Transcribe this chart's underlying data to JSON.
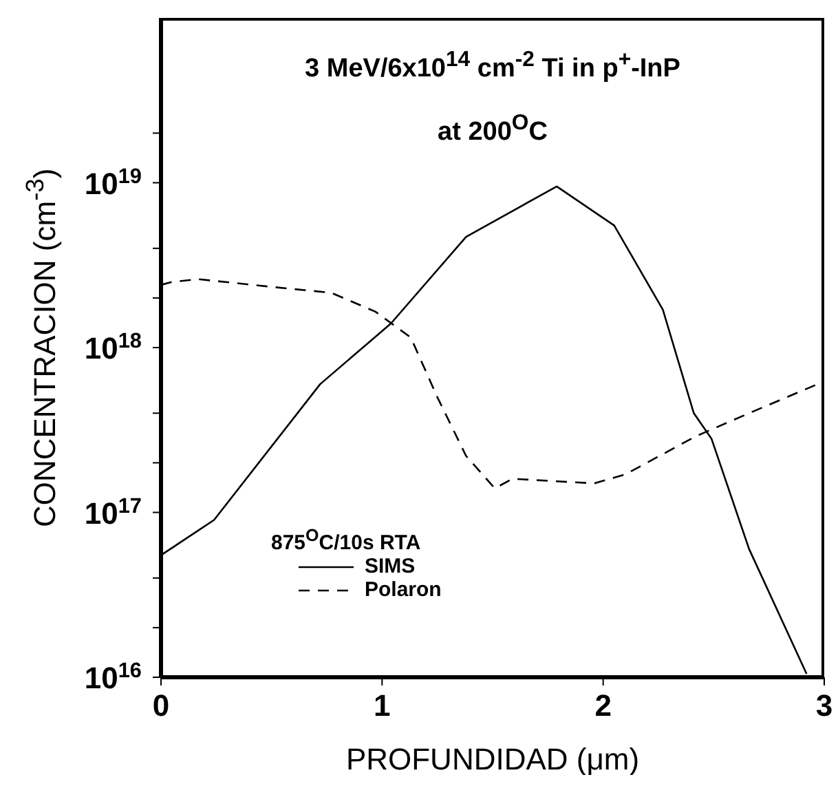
{
  "chart_data": {
    "type": "line",
    "title": "3 MeV/6x10$^{14}$ cm$^{-2}$ Ti in p$^{+}$-InP\nat 200$^{O}$C",
    "xlabel": "PROFUNDIDAD (μm)",
    "ylabel": "CONCENTRACION (cm$^{-3}$)",
    "legend_title": "875$^{O}$C/10s RTA",
    "legend": "bottom left",
    "log": "y",
    "marker": "none",
    "xlim": [
      0,
      3
    ],
    "xticks": [
      0,
      1,
      2,
      3
    ],
    "ylim": [
      1e+16,
      1e+20
    ],
    "yticks": [
      {
        "value": 1e+16,
        "label": "10$^{16}$"
      },
      {
        "value": 2e+16,
        "label": null
      },
      {
        "value": 4e+16,
        "label": null
      },
      {
        "value": 1e+17,
        "label": "10$^{17}$"
      },
      {
        "value": 2e+17,
        "label": null
      },
      {
        "value": 4e+17,
        "label": null
      },
      {
        "value": 1e+18,
        "label": "10$^{18}$"
      },
      {
        "value": 2e+18,
        "label": null
      },
      {
        "value": 4e+18,
        "label": null
      },
      {
        "value": 1e+19,
        "label": "10$^{19}$"
      },
      {
        "value": 2e+19,
        "label": null
      }
    ],
    "series": [
      {
        "name": "SIMS",
        "color": "#000000",
        "line_style": "solid",
        "x": [
          0,
          0.24,
          0.72,
          1.04,
          1.38,
          1.79,
          2.05,
          2.27,
          2.41,
          2.49,
          2.66,
          2.92
        ],
        "values": [
          5.5e+16,
          9e+16,
          6e+17,
          1.4e+18,
          4.7e+18,
          9.5e+18,
          5.5e+18,
          1.7e+18,
          4e+17,
          2.8e+17,
          6e+16,
          1.05e+16
        ]
      },
      {
        "name": "Polaron",
        "color": "#000000",
        "line_style": "dashed",
        "x": [
          0,
          0.05,
          0.17,
          0.48,
          0.77,
          0.97,
          1.13,
          1.25,
          1.38,
          1.51,
          1.59,
          1.96,
          2.1,
          2.42,
          2.66,
          2.97
        ],
        "values": [
          2.4e+18,
          2.5e+18,
          2.6e+18,
          2.35e+18,
          2.15e+18,
          1.65e+18,
          1.15e+18,
          5e+17,
          2.2e+17,
          1.4e+17,
          1.6e+17,
          1.5e+17,
          1.7e+17,
          2.9e+17,
          4e+17,
          6e+17
        ]
      }
    ]
  }
}
